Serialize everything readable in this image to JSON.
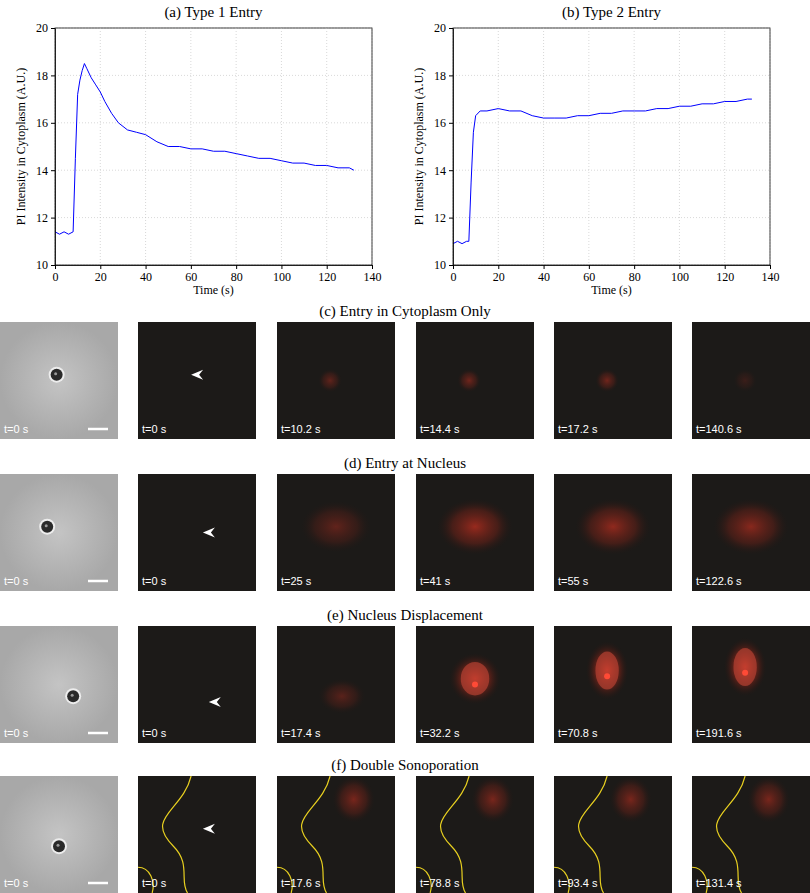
{
  "chart_data": [
    {
      "type": "line",
      "title": "(a) Type 1 Entry",
      "x_label": "Time (s)",
      "y_label": "PI Intensity in Cytoplasm (A.U.)",
      "xlim": [
        0,
        140
      ],
      "ylim": [
        10,
        20
      ],
      "xticks": [
        0,
        20,
        40,
        60,
        80,
        100,
        120,
        140
      ],
      "yticks": [
        10,
        12,
        14,
        16,
        18,
        20
      ],
      "grid": true,
      "color": "#0000ff",
      "x": [
        0,
        2,
        4,
        6,
        8,
        9,
        10,
        11,
        12,
        13,
        14,
        16,
        18,
        20,
        22,
        25,
        28,
        32,
        36,
        40,
        45,
        50,
        55,
        60,
        65,
        70,
        75,
        80,
        85,
        90,
        95,
        100,
        105,
        110,
        115,
        120,
        125,
        130,
        132
      ],
      "values": [
        11.4,
        11.3,
        11.4,
        11.3,
        11.4,
        14.5,
        17.2,
        17.8,
        18.2,
        18.5,
        18.3,
        17.9,
        17.6,
        17.3,
        16.9,
        16.4,
        16.0,
        15.7,
        15.6,
        15.5,
        15.2,
        15.0,
        15.0,
        14.9,
        14.9,
        14.8,
        14.8,
        14.7,
        14.6,
        14.5,
        14.5,
        14.4,
        14.3,
        14.3,
        14.2,
        14.2,
        14.1,
        14.1,
        14.0
      ]
    },
    {
      "type": "line",
      "title": "(b) Type 2 Entry",
      "x_label": "Time (s)",
      "y_label": "PI Intensity in Cytoplasm (A.U.)",
      "xlim": [
        0,
        140
      ],
      "ylim": [
        10,
        20
      ],
      "xticks": [
        0,
        20,
        40,
        60,
        80,
        100,
        120,
        140
      ],
      "yticks": [
        10,
        12,
        14,
        16,
        18,
        20
      ],
      "grid": true,
      "color": "#0000ff",
      "x": [
        0,
        2,
        4,
        6,
        7,
        8,
        9,
        10,
        12,
        15,
        20,
        25,
        30,
        35,
        40,
        45,
        50,
        55,
        60,
        65,
        70,
        75,
        80,
        85,
        90,
        95,
        100,
        105,
        110,
        115,
        120,
        125,
        130,
        132
      ],
      "values": [
        10.9,
        11.0,
        10.9,
        11.0,
        11.0,
        13.5,
        15.6,
        16.3,
        16.5,
        16.5,
        16.6,
        16.5,
        16.5,
        16.3,
        16.2,
        16.2,
        16.2,
        16.3,
        16.3,
        16.4,
        16.4,
        16.5,
        16.5,
        16.5,
        16.6,
        16.6,
        16.7,
        16.7,
        16.8,
        16.8,
        16.9,
        16.9,
        17.0,
        17.0
      ]
    }
  ],
  "rows": [
    {
      "title": "(c) Entry in Cytoplasm Only",
      "labels": [
        "t=0 s",
        "t=0 s",
        "t=10.2 s",
        "t=14.4 s",
        "t=17.2 s",
        "t=140.6 s"
      ]
    },
    {
      "title": "(d) Entry at Nucleus",
      "labels": [
        "t=0 s",
        "t=0 s",
        "t=25 s",
        "t=41 s",
        "t=55 s",
        "t=122.6 s"
      ]
    },
    {
      "title": "(e) Nucleus Displacement",
      "labels": [
        "t=0 s",
        "t=0 s",
        "t=17.4 s",
        "t=32.2 s",
        "t=70.8 s",
        "t=191.6 s"
      ]
    },
    {
      "title": "(f) Double Sonoporation",
      "labels": [
        "t=0 s",
        "t=0 s",
        "t=17.6 s",
        "t=78.8 s",
        "t=93.4 s",
        "t=131.4 s"
      ]
    }
  ]
}
